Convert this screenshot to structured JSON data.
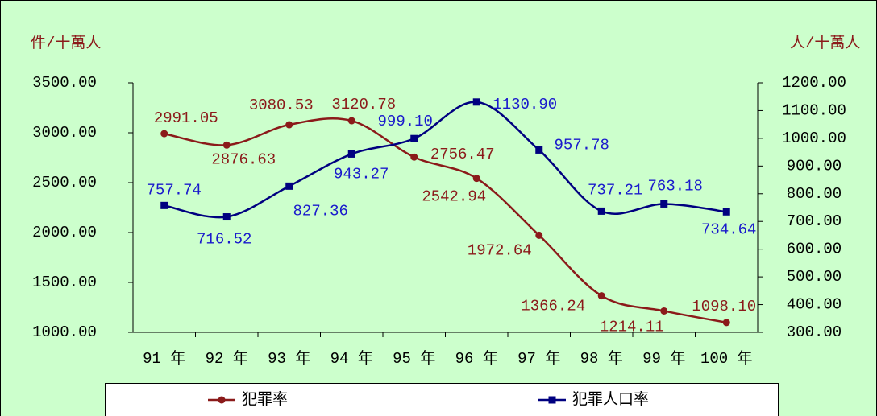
{
  "chart_data": {
    "type": "line",
    "y_label": "件/十萬人",
    "y2_label": "人/十萬人",
    "categories": [
      "91 年",
      "92 年",
      "93 年",
      "94 年",
      "95 年",
      "96 年",
      "97 年",
      "98 年",
      "99 年",
      "100 年"
    ],
    "series": [
      {
        "name": "犯罪率",
        "color": "#8b1a1a",
        "marker": "circle",
        "values": [
          2991.05,
          2876.63,
          3080.53,
          3120.78,
          2756.47,
          2542.94,
          1972.64,
          1366.24,
          1214.11,
          1098.1
        ],
        "value_labels": [
          "2991.05",
          "2876.63",
          "3080.53",
          "3120.78",
          "2756.47",
          "2542.94",
          "1972.64",
          "1366.24",
          "1214.11",
          "1098.10"
        ]
      },
      {
        "name": "犯罪人口率",
        "color": "#000080",
        "marker": "square",
        "axis": "y2",
        "values": [
          757.74,
          716.52,
          827.36,
          943.27,
          999.1,
          1130.9,
          957.78,
          737.21,
          763.18,
          734.64
        ],
        "value_labels": [
          "757.74",
          "716.52",
          "827.36",
          "943.27",
          "999.10",
          "1130.90",
          "957.78",
          "737.21",
          "763.18",
          "734.64"
        ]
      }
    ],
    "ylim": [
      1000,
      3500
    ],
    "yticks": [
      {
        "value": 1000,
        "label": "1000.00"
      },
      {
        "value": 1500,
        "label": "1500.00"
      },
      {
        "value": 2000,
        "label": "2000.00"
      },
      {
        "value": 2500,
        "label": "2500.00"
      },
      {
        "value": 3000,
        "label": "3000.00"
      },
      {
        "value": 3500,
        "label": "3500.00"
      }
    ],
    "y2lim": [
      300,
      1200
    ],
    "y2ticks": [
      {
        "value": 300,
        "label": "300.00"
      },
      {
        "value": 400,
        "label": "400.00"
      },
      {
        "value": 500,
        "label": "500.00"
      },
      {
        "value": 600,
        "label": "600.00"
      },
      {
        "value": 700,
        "label": "700.00"
      },
      {
        "value": 800,
        "label": "800.00"
      },
      {
        "value": 900,
        "label": "900.00"
      },
      {
        "value": 1000,
        "label": "1000.00"
      },
      {
        "value": 1100,
        "label": "1100.00"
      },
      {
        "value": 1200,
        "label": "1200.00"
      }
    ],
    "legend": "bottom"
  }
}
